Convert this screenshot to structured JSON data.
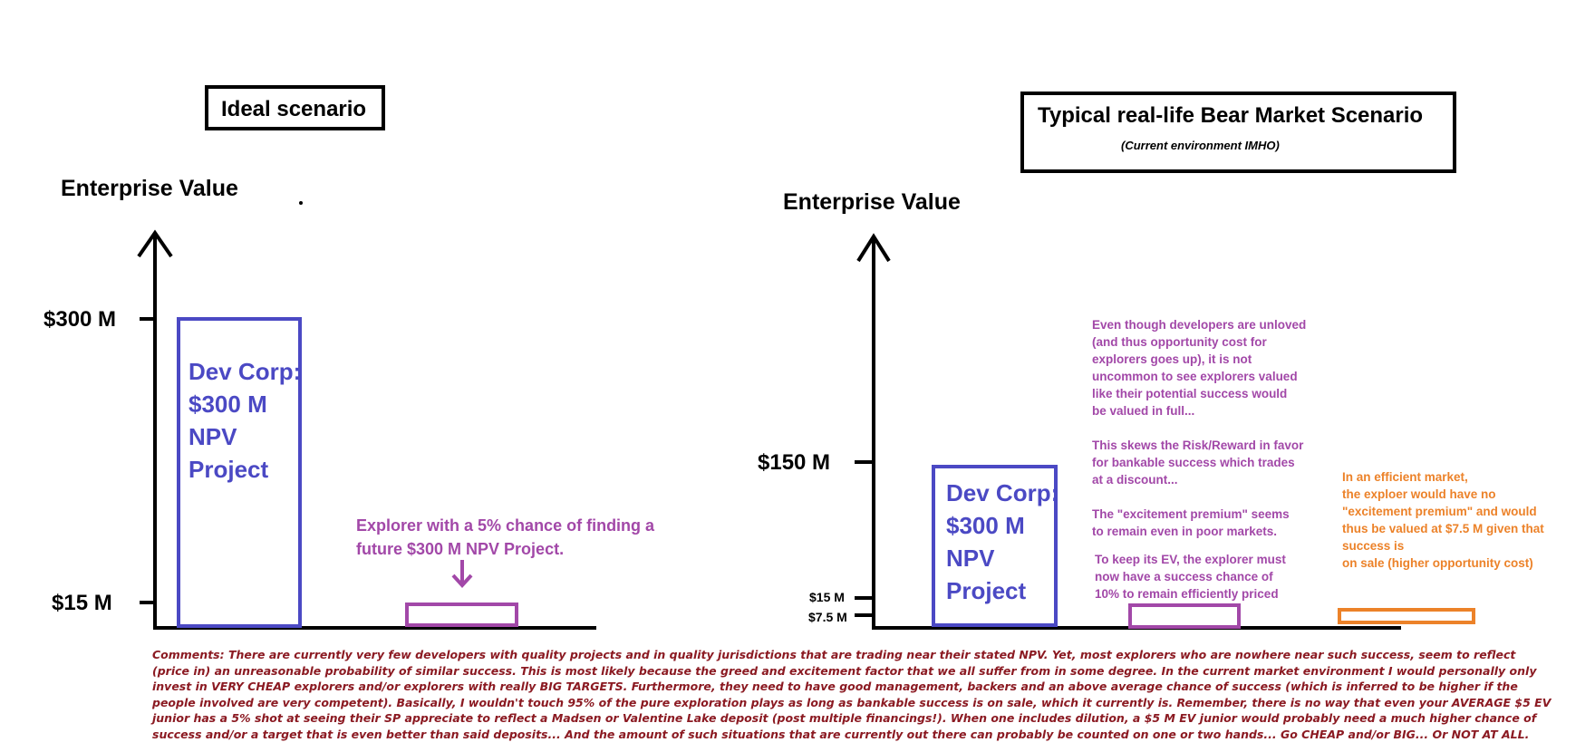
{
  "left_panel": {
    "title": "Ideal scenario",
    "axis_label": "Enterprise Value",
    "ticks": [
      "$300 M",
      "$15 M"
    ],
    "dev_box_lines": [
      "Dev Corp:",
      "$300 M",
      "NPV",
      "Project"
    ],
    "explorer_note_lines": [
      "Explorer with a 5% chance of finding a",
      "future $300 M NPV Project."
    ]
  },
  "right_panel": {
    "title": "Typical real-life Bear Market Scenario",
    "subtitle": "(Current environment IMHO)",
    "axis_label": "Enterprise Value",
    "ticks": [
      "$150 M",
      "$15 M",
      "$7.5 M"
    ],
    "dev_box_lines": [
      "Dev Corp:",
      "$300 M",
      "NPV",
      "Project"
    ],
    "unloved_note_lines": [
      "Even though developers are unloved",
      "(and thus opportunity cost for",
      "explorers goes up), it is not",
      "uncommon to see explorers valued",
      "like their potential success would",
      "be valued in full...",
      "",
      "This skews the Risk/Reward in favor",
      "for bankable success which trades",
      "at a discount...",
      "",
      "The \"excitement premium\" seems",
      "to remain even in poor markets."
    ],
    "keep_ev_note_lines": [
      "To keep its EV, the explorer must",
      "now have a success chance of",
      "10% to remain efficiently priced"
    ],
    "efficient_note_lines": [
      "In an efficient market,",
      "the exploer would have no",
      "\"excitement premium\" and would",
      "thus be valued at $7.5 M given that",
      "success is",
      "on sale (higher opportunity cost)"
    ]
  },
  "comments_lines": [
    "Comments: There are currently very few developers with quality projects and in quality jurisdictions that are trading near their stated NPV. Yet, most explorers who are nowhere near such success, seem to reflect",
    "(price in) an unreasonable probability of similar success. This is most likely because the greed and excitement factor that we all suffer from in some degree. In the current market environment I would personally only",
    "invest in VERY CHEAP explorers and/or explorers with really BIG TARGETS. Furthermore, they need to have good management, backers and an above average chance of success (which is inferred to be higher if the",
    "people involved are very competent). Basically, I wouldn't touch 95% of the pure exploration plays as long as bankable success is on sale, which it currently is. Remember, there is no way that even your AVERAGE $5 EV",
    "junior has a 5% shot at seeing their SP appreciate to reflect a Madsen or Valentine Lake deposit (post multiple financings!). When one includes dilution, a $5 M EV junior would probably need a much higher chance of",
    "success and/or a target that is even better than said deposits... And the amount of such situations that are currently out there can probably be counted on one or two hands... Go CHEAP and/or BIG... Or NOT AT ALL."
  ],
  "colors": {
    "dev_blue": "#4b49c4",
    "explorer_purple": "#a248a8",
    "efficient_orange": "#ec8229",
    "comment_red": "#8b1a22"
  }
}
